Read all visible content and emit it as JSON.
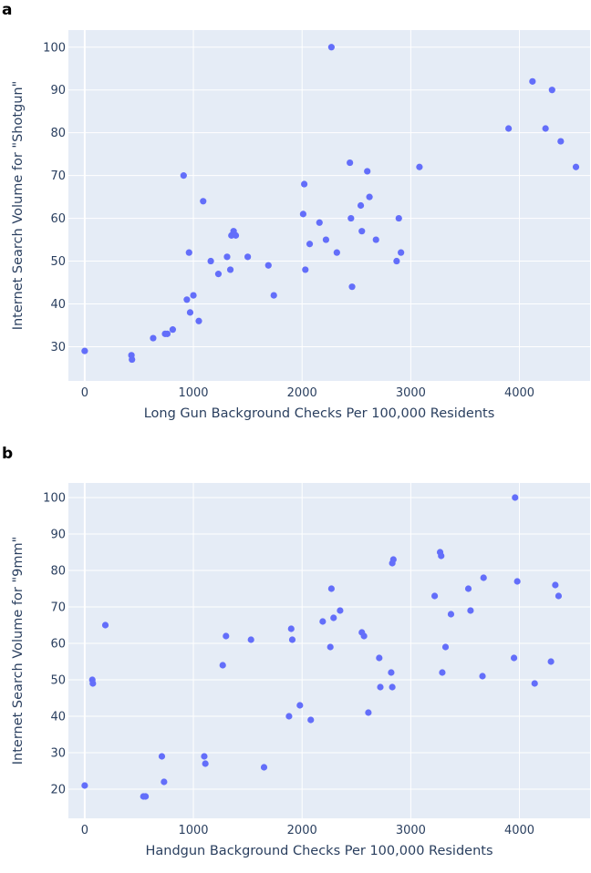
{
  "chart_data": [
    {
      "panel_label": "a",
      "type": "scatter",
      "xlabel": "Long Gun Background Checks Per 100,000 Residents",
      "ylabel": "Internet Search Volume for \"Shotgun\"",
      "xlim": [
        -150,
        4650
      ],
      "ylim": [
        22,
        104
      ],
      "xticks": [
        0,
        1000,
        2000,
        3000,
        4000
      ],
      "yticks": [
        30,
        40,
        50,
        60,
        70,
        80,
        90,
        100
      ],
      "grid": true,
      "marker_color": "#636efa",
      "background_color": "#e5ecf6",
      "points": [
        {
          "x": 0,
          "y": 29
        },
        {
          "x": 430,
          "y": 28
        },
        {
          "x": 435,
          "y": 27
        },
        {
          "x": 630,
          "y": 32
        },
        {
          "x": 740,
          "y": 33
        },
        {
          "x": 760,
          "y": 33
        },
        {
          "x": 810,
          "y": 34
        },
        {
          "x": 910,
          "y": 70
        },
        {
          "x": 940,
          "y": 41
        },
        {
          "x": 960,
          "y": 52
        },
        {
          "x": 970,
          "y": 38
        },
        {
          "x": 1000,
          "y": 42
        },
        {
          "x": 1050,
          "y": 36
        },
        {
          "x": 1090,
          "y": 64
        },
        {
          "x": 1160,
          "y": 50
        },
        {
          "x": 1230,
          "y": 47
        },
        {
          "x": 1310,
          "y": 51
        },
        {
          "x": 1340,
          "y": 48
        },
        {
          "x": 1350,
          "y": 56
        },
        {
          "x": 1370,
          "y": 57
        },
        {
          "x": 1390,
          "y": 56
        },
        {
          "x": 1500,
          "y": 51
        },
        {
          "x": 1690,
          "y": 49
        },
        {
          "x": 1740,
          "y": 42
        },
        {
          "x": 2010,
          "y": 61
        },
        {
          "x": 2020,
          "y": 68
        },
        {
          "x": 2030,
          "y": 48
        },
        {
          "x": 2070,
          "y": 54
        },
        {
          "x": 2160,
          "y": 59
        },
        {
          "x": 2220,
          "y": 55
        },
        {
          "x": 2270,
          "y": 100
        },
        {
          "x": 2320,
          "y": 52
        },
        {
          "x": 2440,
          "y": 73
        },
        {
          "x": 2450,
          "y": 60
        },
        {
          "x": 2460,
          "y": 44
        },
        {
          "x": 2540,
          "y": 63
        },
        {
          "x": 2550,
          "y": 57
        },
        {
          "x": 2600,
          "y": 71
        },
        {
          "x": 2620,
          "y": 65
        },
        {
          "x": 2680,
          "y": 55
        },
        {
          "x": 2870,
          "y": 50
        },
        {
          "x": 2890,
          "y": 60
        },
        {
          "x": 2910,
          "y": 52
        },
        {
          "x": 3080,
          "y": 72
        },
        {
          "x": 3900,
          "y": 81
        },
        {
          "x": 4120,
          "y": 92
        },
        {
          "x": 4240,
          "y": 81
        },
        {
          "x": 4300,
          "y": 90
        },
        {
          "x": 4380,
          "y": 78
        },
        {
          "x": 4520,
          "y": 72
        }
      ]
    },
    {
      "panel_label": "b",
      "type": "scatter",
      "xlabel": "Handgun Background Checks Per 100,000 Residents",
      "ylabel": "Internet Search Volume for \"9mm\"",
      "xlim": [
        -150,
        4650
      ],
      "ylim": [
        12,
        104
      ],
      "xticks": [
        0,
        1000,
        2000,
        3000,
        4000
      ],
      "yticks": [
        20,
        30,
        40,
        50,
        60,
        70,
        80,
        90,
        100
      ],
      "grid": true,
      "marker_color": "#636efa",
      "background_color": "#e5ecf6",
      "points": [
        {
          "x": 0,
          "y": 21
        },
        {
          "x": 70,
          "y": 50
        },
        {
          "x": 75,
          "y": 49
        },
        {
          "x": 190,
          "y": 65
        },
        {
          "x": 540,
          "y": 18
        },
        {
          "x": 560,
          "y": 18
        },
        {
          "x": 710,
          "y": 29
        },
        {
          "x": 730,
          "y": 22
        },
        {
          "x": 1100,
          "y": 29
        },
        {
          "x": 1110,
          "y": 27
        },
        {
          "x": 1270,
          "y": 54
        },
        {
          "x": 1300,
          "y": 62
        },
        {
          "x": 1530,
          "y": 61
        },
        {
          "x": 1650,
          "y": 26
        },
        {
          "x": 1880,
          "y": 40
        },
        {
          "x": 1900,
          "y": 64
        },
        {
          "x": 1910,
          "y": 61
        },
        {
          "x": 1980,
          "y": 43
        },
        {
          "x": 2080,
          "y": 39
        },
        {
          "x": 2190,
          "y": 66
        },
        {
          "x": 2260,
          "y": 59
        },
        {
          "x": 2270,
          "y": 75
        },
        {
          "x": 2290,
          "y": 67
        },
        {
          "x": 2350,
          "y": 69
        },
        {
          "x": 2550,
          "y": 63
        },
        {
          "x": 2570,
          "y": 62
        },
        {
          "x": 2610,
          "y": 41
        },
        {
          "x": 2710,
          "y": 56
        },
        {
          "x": 2720,
          "y": 48
        },
        {
          "x": 2820,
          "y": 52
        },
        {
          "x": 2830,
          "y": 48
        },
        {
          "x": 2830,
          "y": 82
        },
        {
          "x": 2840,
          "y": 83
        },
        {
          "x": 3220,
          "y": 73
        },
        {
          "x": 3270,
          "y": 85
        },
        {
          "x": 3280,
          "y": 84
        },
        {
          "x": 3290,
          "y": 52
        },
        {
          "x": 3320,
          "y": 59
        },
        {
          "x": 3370,
          "y": 68
        },
        {
          "x": 3530,
          "y": 75
        },
        {
          "x": 3550,
          "y": 69
        },
        {
          "x": 3660,
          "y": 51
        },
        {
          "x": 3670,
          "y": 78
        },
        {
          "x": 3950,
          "y": 56
        },
        {
          "x": 3960,
          "y": 100
        },
        {
          "x": 3980,
          "y": 77
        },
        {
          "x": 4140,
          "y": 49
        },
        {
          "x": 4290,
          "y": 55
        },
        {
          "x": 4330,
          "y": 76
        },
        {
          "x": 4360,
          "y": 73
        }
      ]
    }
  ]
}
